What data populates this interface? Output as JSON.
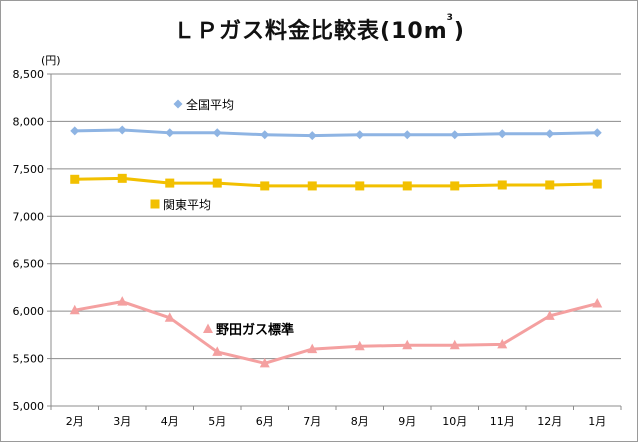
{
  "chart_data": {
    "type": "line",
    "title_main": "ＬＰガス料金比較表(10m",
    "title_sup": "3",
    "title_end": ")",
    "ylabel": "(円)",
    "categories": [
      "2月",
      "3月",
      "4月",
      "5月",
      "6月",
      "7月",
      "8月",
      "9月",
      "10月",
      "11月",
      "12月",
      "1月"
    ],
    "ylim": [
      5000,
      8500
    ],
    "yticks": [
      "5,000",
      "5,500",
      "6,000",
      "6,500",
      "7,000",
      "7,500",
      "8,000",
      "8,500"
    ],
    "ytick_values": [
      5000,
      5500,
      6000,
      6500,
      7000,
      7500,
      8000,
      8500
    ],
    "grid": true,
    "series": [
      {
        "name": "全国平均",
        "color": "#8eb4e3",
        "marker": "diamond",
        "values": [
          7900,
          7910,
          7880,
          7880,
          7860,
          7850,
          7860,
          7860,
          7860,
          7870,
          7870,
          7880
        ]
      },
      {
        "name": "関東平均",
        "color": "#f2c000",
        "marker": "square",
        "values": [
          7390,
          7400,
          7350,
          7350,
          7320,
          7320,
          7320,
          7320,
          7320,
          7330,
          7330,
          7340
        ]
      },
      {
        "name": "野田ガス標準",
        "color": "#f4a0a0",
        "marker": "triangle",
        "values": [
          6010,
          6100,
          5930,
          5570,
          5450,
          5600,
          5630,
          5640,
          5640,
          5650,
          5950,
          6080
        ]
      }
    ]
  }
}
